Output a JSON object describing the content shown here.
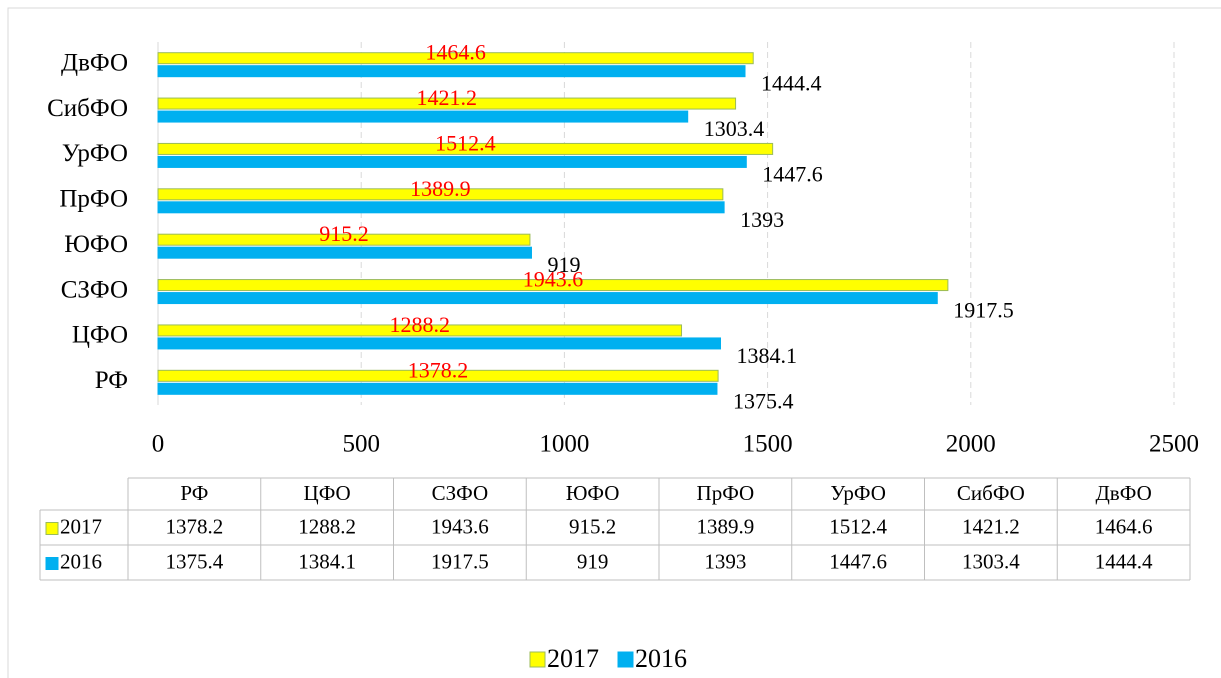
{
  "chart_data": {
    "type": "hbar",
    "categories": [
      "РФ",
      "ЦФО",
      "СЗФО",
      "ЮФО",
      "ПрФО",
      "УрФО",
      "СибФО",
      "ДвФО"
    ],
    "series": [
      {
        "name": "2017",
        "color": "#ffff00",
        "stroke": "#9bbb59",
        "label_color": "#ff0000",
        "values": [
          1378.2,
          1288.2,
          1943.6,
          915.2,
          1389.9,
          1512.4,
          1421.2,
          1464.6
        ]
      },
      {
        "name": "2016",
        "color": "#00b0f0",
        "stroke": "#00b0f0",
        "label_color": "#000000",
        "values": [
          1375.4,
          1384.1,
          1917.5,
          919,
          1393,
          1447.6,
          1303.4,
          1444.4
        ]
      }
    ],
    "xlim": [
      0,
      2500
    ],
    "xticks": [
      0,
      500,
      1000,
      1500,
      2000,
      2500
    ],
    "grid": true
  }
}
